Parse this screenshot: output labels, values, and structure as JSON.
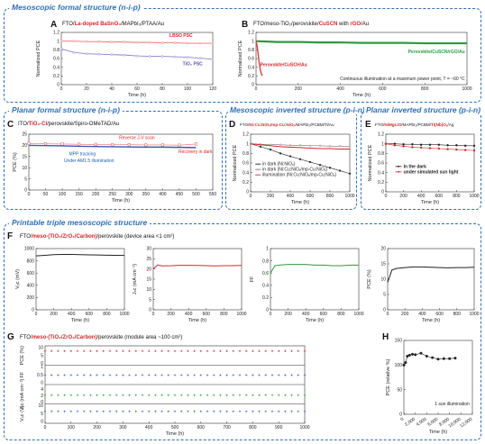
{
  "sections": {
    "mesoscopic_formal": "Mesoscopic formal structure (n-i-p)",
    "planar_formal": "Planar formal structure (n-i-p)",
    "mesoscopic_inverted": "Mesoscopic inverted structure (p-i-n)",
    "planar_inverted": "Planar inverted structure (p-i-n)",
    "printable_triple": "Printable triple mesoscopic structure"
  },
  "panels": {
    "A": {
      "letter": "A",
      "cap_pre": "FTO/",
      "cap_red": "La-doped BaSnO₃",
      "cap_post": "/MAPbI₃/PTAA/Au"
    },
    "B": {
      "letter": "B",
      "cap_pre": "FTO/meso-TiO₂/perovskite/",
      "cap_red": "CuSCN",
      "cap_mid": " with ",
      "cap_red2": "rGO",
      "cap_post": "/Au"
    },
    "C": {
      "letter": "C",
      "cap_pre": "ITO/",
      "cap_red": "TiO₂-Cl",
      "cap_post": "/perovskite/Spiro-OMeTAD/Au"
    },
    "D": {
      "letter": "D",
      "cap_pre": "FTO/",
      "cap_red": "Ni:Cu:NiOₓ/mp-Cu:NiOₓ",
      "cap_post": "/MAPbI₃/PCBM/Ti/Au"
    },
    "E": {
      "letter": "E",
      "cap_pre": "FTO/",
      "cap_red": "NiMgLiO",
      "cap_mid": "/MAPbI₃/PCBM/",
      "cap_red2": "Ti(Nb)Oₓ",
      "cap_post": "/Ag"
    },
    "F": {
      "letter": "F",
      "cap_pre": "FTO/",
      "cap_red": "meso-(TiO₂/ZrO₂/Carbon)",
      "cap_post": "/perovskite (device area <1 cm²)"
    },
    "G": {
      "letter": "G",
      "cap_pre": "FTO/",
      "cap_red": "meso-(TiO₂/ZrO₂/Carbon)",
      "cap_post": "/perovskite (module area ~100 cm²)"
    },
    "H": {
      "letter": "H"
    }
  },
  "chart_data": [
    {
      "panel": "A",
      "type": "line",
      "xlabel": "Time (h)",
      "ylabel": "Normalized PCE",
      "xlim": [
        0,
        120
      ],
      "ylim": [
        0,
        1.2
      ],
      "xticks": [
        0,
        20,
        40,
        60,
        80,
        100,
        120
      ],
      "yticks": [
        0,
        0.2,
        0.4,
        0.6,
        0.8,
        1.0,
        1.2
      ],
      "series": [
        {
          "name": "LBSO PSC",
          "color": "#e8706e",
          "x": [
            0,
            10,
            20,
            30,
            40,
            50,
            60,
            70,
            80,
            90,
            100,
            110,
            120
          ],
          "y": [
            1.0,
            1.0,
            0.99,
            0.99,
            0.98,
            0.98,
            0.97,
            0.97,
            0.96,
            0.96,
            0.95,
            0.95,
            0.95
          ]
        },
        {
          "name": "TiO₂ PSC",
          "color": "#8a84c8",
          "x": [
            0,
            10,
            20,
            30,
            40,
            50,
            60,
            70,
            80,
            90,
            100,
            110,
            120
          ],
          "y": [
            0.82,
            0.74,
            0.71,
            0.7,
            0.69,
            0.68,
            0.66,
            0.65,
            0.65,
            0.64,
            0.63,
            0.61,
            0.58
          ]
        }
      ]
    },
    {
      "panel": "B",
      "type": "line",
      "xlabel": "Time (h)",
      "ylabel": "Normalized PCE",
      "xlim": [
        0,
        1000
      ],
      "ylim": [
        0,
        1.2
      ],
      "xticks": [
        0,
        200,
        400,
        600,
        800,
        1000
      ],
      "yticks": [
        0,
        0.2,
        0.4,
        0.6,
        0.8,
        1.0,
        1.2
      ],
      "annotation": "Continuous illumination at a maximum power point, T = ~60 °C",
      "series": [
        {
          "name": "Perovskite/CuSCN/rGO/Au",
          "color": "#2e9a3e",
          "x": [
            0,
            50,
            100,
            200,
            300,
            400,
            500,
            600,
            700,
            800,
            900,
            1000
          ],
          "y": [
            1.0,
            0.99,
            0.98,
            0.98,
            0.97,
            0.97,
            0.96,
            0.96,
            0.96,
            0.95,
            0.95,
            0.95
          ]
        },
        {
          "name": "Perovskite/CuSCH/Au",
          "color": "#e03a3a",
          "x": [
            0,
            5,
            10,
            15,
            20,
            25,
            30
          ],
          "y": [
            1.0,
            0.9,
            0.7,
            0.5,
            0.35,
            0.25,
            0.2
          ]
        }
      ]
    },
    {
      "panel": "C",
      "type": "line",
      "xlabel": "Time (h)",
      "ylabel": "PCE (%)",
      "xlim": [
        0,
        550
      ],
      "ylim": [
        0,
        25
      ],
      "xticks": [
        0,
        50,
        100,
        150,
        200,
        250,
        300,
        350,
        400,
        450,
        500,
        550
      ],
      "yticks": [
        0,
        5,
        10,
        15,
        20,
        25
      ],
      "annotations": [
        "Reverse J-V scan",
        "MPP tracking",
        "Under AM1.5 illumination",
        "Recovery in dark"
      ],
      "series": [
        {
          "name": "Reverse J-V scan",
          "color": "#e8706e",
          "x": [
            0,
            50,
            100,
            150,
            200,
            250,
            300,
            350,
            400,
            450,
            500
          ],
          "y": [
            20.8,
            20.7,
            20.6,
            20.5,
            20.4,
            20.3,
            20.3,
            20.2,
            20.2,
            20.1,
            20.6
          ]
        },
        {
          "name": "MPP tracking",
          "color": "#3b5bb5",
          "x": [
            0,
            50,
            100,
            150,
            200,
            250,
            300,
            350,
            400,
            450,
            500
          ],
          "y": [
            20.0,
            19.9,
            19.8,
            19.6,
            19.5,
            19.4,
            19.3,
            19.2,
            19.2,
            19.1,
            19.0
          ]
        }
      ]
    },
    {
      "panel": "D",
      "type": "line",
      "xlabel": "Time (h)",
      "ylabel": "Normalized PCE",
      "xlim": [
        0,
        1000
      ],
      "ylim": [
        0,
        1.2
      ],
      "xticks": [
        0,
        200,
        400,
        600,
        800,
        1000
      ],
      "yticks": [
        0,
        0.2,
        0.4,
        0.6,
        0.8,
        1.0,
        1.2
      ],
      "series": [
        {
          "name": "in dark (Ni:NiOₓ)",
          "color": "#222222",
          "x": [
            0,
            100,
            200,
            300,
            400,
            500,
            600,
            700,
            800,
            900,
            1000
          ],
          "y": [
            1.0,
            0.94,
            0.88,
            0.8,
            0.74,
            0.68,
            0.62,
            0.56,
            0.5,
            0.44,
            0.38
          ]
        },
        {
          "name": "in dark (Ni:Cu:NiOₓ/mp-Cu:NiOₓ)",
          "color": "#777777",
          "x": [
            0,
            100,
            200,
            300,
            400,
            500,
            600,
            700,
            800,
            900,
            1000
          ],
          "y": [
            1.0,
            0.99,
            0.98,
            0.98,
            0.97,
            0.97,
            0.96,
            0.96,
            0.95,
            0.95,
            0.95
          ]
        },
        {
          "name": "illumination (Ni:Cu:NiOₓ/mp-Cu:NiOₓ)",
          "color": "#d4272b",
          "x": [
            0,
            100,
            200,
            300,
            400,
            500,
            600,
            700,
            800,
            900,
            1000
          ],
          "y": [
            1.0,
            0.98,
            0.96,
            0.94,
            0.93,
            0.92,
            0.91,
            0.9,
            0.9,
            0.89,
            0.89
          ]
        }
      ]
    },
    {
      "panel": "E",
      "type": "line",
      "xlabel": "Time (h)",
      "ylabel": "Normalized PCE",
      "xlim": [
        0,
        1000
      ],
      "ylim": [
        0,
        1.2
      ],
      "xticks": [
        0,
        200,
        400,
        600,
        800,
        1000
      ],
      "yticks": [
        0,
        0.2,
        0.4,
        0.6,
        0.8,
        1.0,
        1.2
      ],
      "series": [
        {
          "name": "In the dark",
          "color": "#222222",
          "x": [
            0,
            100,
            200,
            300,
            400,
            500,
            600,
            700,
            800,
            900,
            1000
          ],
          "y": [
            1.0,
            1.0,
            0.99,
            0.99,
            0.98,
            0.98,
            0.98,
            0.97,
            0.97,
            0.96,
            0.96
          ]
        },
        {
          "name": "under simulated sun light",
          "color": "#d4272b",
          "x": [
            0,
            100,
            200,
            300,
            400,
            500,
            600,
            700,
            800,
            900,
            1000
          ],
          "y": [
            1.0,
            0.97,
            0.95,
            0.93,
            0.92,
            0.91,
            0.9,
            0.89,
            0.88,
            0.87,
            0.86
          ]
        }
      ]
    },
    {
      "panel": "F1",
      "type": "line",
      "xlabel": "Time (h)",
      "ylabel": "Vₒc (mV)",
      "xlim": [
        0,
        1000
      ],
      "ylim": [
        0,
        1000
      ],
      "xticks": [
        0,
        200,
        400,
        600,
        800,
        1000
      ],
      "yticks": [
        0,
        200,
        400,
        600,
        800,
        1000
      ],
      "series": [
        {
          "color": "#222222",
          "x": [
            0,
            100,
            200,
            300,
            400,
            500,
            600,
            700,
            800,
            900,
            1000
          ],
          "y": [
            880,
            890,
            900,
            905,
            905,
            900,
            898,
            895,
            892,
            890,
            888
          ]
        }
      ]
    },
    {
      "panel": "F2",
      "type": "line",
      "xlabel": "Time (h)",
      "ylabel": "Jₛc (mA cm⁻²)",
      "xlim": [
        0,
        1000
      ],
      "ylim": [
        0,
        30
      ],
      "xticks": [
        0,
        200,
        400,
        600,
        800,
        1000
      ],
      "yticks": [
        0,
        5,
        10,
        15,
        20,
        25,
        30
      ],
      "series": [
        {
          "color": "#d4272b",
          "x": [
            0,
            50,
            100,
            200,
            300,
            400,
            500,
            600,
            700,
            800,
            900,
            1000
          ],
          "y": [
            20,
            22,
            21.5,
            21.6,
            21.8,
            21.8,
            21.7,
            21.6,
            21.5,
            21.6,
            21.6,
            21.7
          ]
        }
      ]
    },
    {
      "panel": "F3",
      "type": "line",
      "xlabel": "Time (h)",
      "ylabel": "FF",
      "xlim": [
        0,
        1000
      ],
      "ylim": [
        0,
        1.0
      ],
      "xticks": [
        0,
        200,
        400,
        600,
        800,
        1000
      ],
      "yticks": [
        0,
        0.2,
        0.4,
        0.6,
        0.8,
        1.0
      ],
      "series": [
        {
          "color": "#2e9a3e",
          "x": [
            0,
            50,
            100,
            200,
            300,
            400,
            500,
            600,
            700,
            800,
            900,
            1000
          ],
          "y": [
            0.6,
            0.72,
            0.73,
            0.74,
            0.74,
            0.74,
            0.73,
            0.73,
            0.72,
            0.72,
            0.73,
            0.73
          ]
        }
      ]
    },
    {
      "panel": "F4",
      "type": "line",
      "xlabel": "Time (h)",
      "ylabel": "PCE (%)",
      "xlim": [
        0,
        1000
      ],
      "ylim": [
        0,
        20
      ],
      "xticks": [
        0,
        200,
        400,
        600,
        800,
        1000
      ],
      "yticks": [
        0,
        5,
        10,
        15,
        20
      ],
      "series": [
        {
          "color": "#222222",
          "x": [
            0,
            50,
            100,
            200,
            300,
            400,
            500,
            600,
            700,
            800,
            900,
            1000
          ],
          "y": [
            9,
            13,
            13.5,
            13.8,
            14,
            14,
            13.9,
            13.8,
            13.7,
            13.8,
            13.8,
            13.9
          ]
        }
      ]
    },
    {
      "panel": "G",
      "type": "scatter",
      "xlabel": "Time (h)",
      "xlim": [
        0,
        1000
      ],
      "xticks": [
        0,
        100,
        200,
        300,
        400,
        500,
        600,
        700,
        800,
        900,
        1000
      ],
      "rows": [
        {
          "ylabel": "PCE (%)",
          "ylim": [
            0,
            10
          ],
          "yticks": [
            0,
            5,
            10
          ],
          "color": "#d4272b",
          "value": 7.8
        },
        {
          "ylabel": "FF",
          "ylim": [
            0,
            1
          ],
          "yticks": [
            0,
            0.5,
            1
          ],
          "color": "#3b5bd5",
          "value": 0.48
        },
        {
          "ylabel": "Jₛc (mA cm⁻²)",
          "ylim": [
            0,
            5
          ],
          "yticks": [
            0,
            2,
            4
          ],
          "color": "#2e9a3e",
          "value": 2.2
        },
        {
          "ylabel": "Vₒc (V)",
          "ylim": [
            0,
            10
          ],
          "yticks": [
            0,
            5,
            10
          ],
          "color": "#3b5bd5",
          "value": 6.4
        }
      ],
      "x": [
        0,
        25,
        50,
        75,
        100,
        125,
        150,
        175,
        200,
        225,
        250,
        275,
        300,
        325,
        350,
        375,
        400,
        425,
        450,
        475,
        500,
        525,
        550,
        575,
        600,
        625,
        650,
        675,
        700,
        725,
        750,
        775,
        800,
        825,
        850,
        875,
        900,
        925,
        950,
        975,
        1000
      ]
    },
    {
      "panel": "H",
      "type": "scatter",
      "xlabel": "Time (h)",
      "ylabel": "PCE (relative %)",
      "xlim": [
        0,
        12000
      ],
      "ylim": [
        0,
        150
      ],
      "xticks": [
        0,
        2000,
        4000,
        6000,
        8000,
        10000,
        12000
      ],
      "xticklabels": [
        "0",
        "2,000",
        "4,000",
        "6,000",
        "8,000",
        "10,000",
        "12,000"
      ],
      "yticks": [
        0,
        50,
        100,
        150
      ],
      "annotation": "1 sun illumination",
      "color": "#222222",
      "x": [
        0,
        300,
        600,
        1000,
        1500,
        2000,
        3000,
        4000,
        5000,
        6000,
        7000,
        8000,
        9000
      ],
      "y": [
        100,
        105,
        118,
        120,
        122,
        121,
        124,
        118,
        115,
        112,
        113,
        113,
        114
      ]
    }
  ]
}
